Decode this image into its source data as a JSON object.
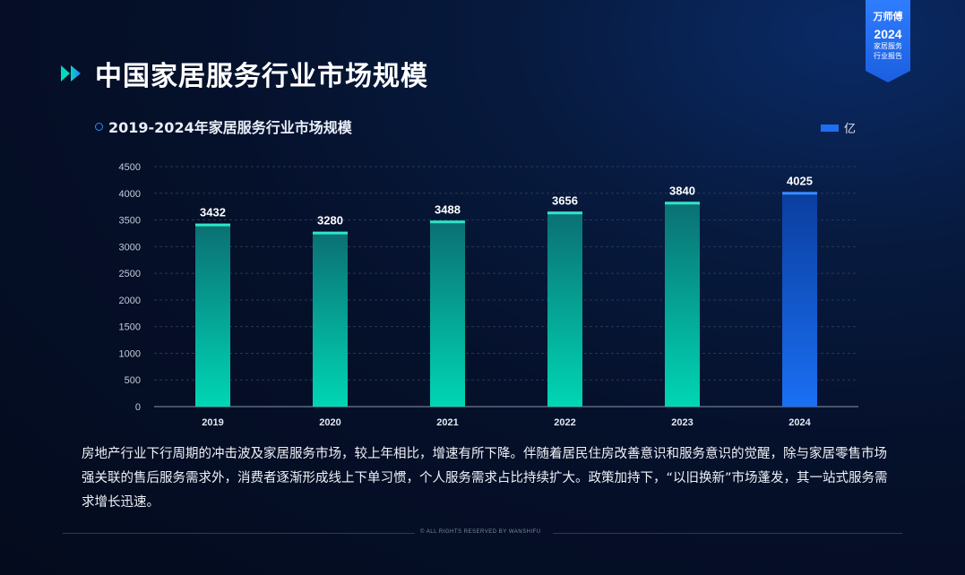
{
  "page": {
    "title": "中国家居服务行业市场规模",
    "badge": {
      "brand": "万师傅",
      "year": "2024",
      "line1": "家居服务",
      "line2": "行业报告"
    },
    "description": "房地产行业下行周期的冲击波及家居服务市场，较上年相比，增速有所下降。伴随着居民住房改善意识和服务意识的觉醒，除与家居零售市场强关联的售后服务需求外，消费者逐渐形成线上下单习惯，个人服务需求占比持续扩大。政策加持下，“以旧换新”市场蓬发，其一站式服务需求增长迅速。",
    "footer": "© ALL RIGHTS RESERVED BY WANSHIFU"
  },
  "colors": {
    "bar_top": "#0b6f73",
    "bar_bottom": "#00d6b4",
    "bar_cap": "#2fe6c8",
    "highlight_top": "#0a3e9e",
    "highlight_bottom": "#1a6ff3",
    "highlight_cap": "#3d8bff",
    "accent": "#2d8cff"
  },
  "chart_data": {
    "type": "bar",
    "title": "2019-2024年家居服务行业市场规模",
    "categories": [
      "2019",
      "2020",
      "2021",
      "2022",
      "2023",
      "2024"
    ],
    "series": [
      {
        "name": "亿",
        "values": [
          3432,
          3280,
          3488,
          3656,
          3840,
          4025
        ]
      }
    ],
    "highlight_category": "2024",
    "ylim": [
      0,
      4500
    ],
    "yticks": [
      0,
      500,
      1000,
      1500,
      2000,
      2500,
      3000,
      3500,
      4000,
      4500
    ],
    "grid": true,
    "legend": "top-right"
  }
}
